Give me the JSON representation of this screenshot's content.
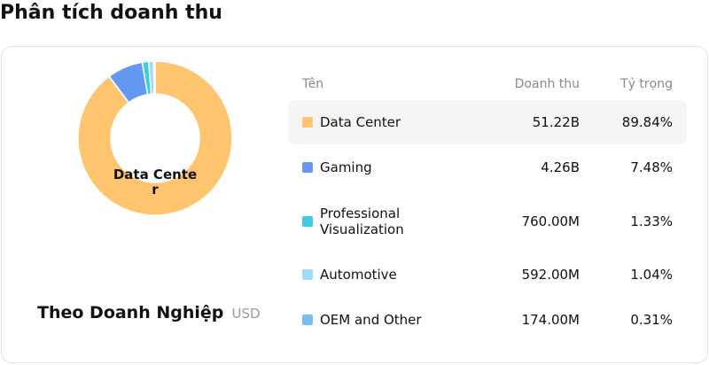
{
  "page_title": "Phân tích doanh thu",
  "summary": {
    "center_label": "Data Center",
    "caption": "Theo Doanh Nghiệp",
    "unit": "USD"
  },
  "table": {
    "headers": {
      "name": "Tên",
      "revenue": "Doanh thu",
      "share": "Tỷ trọng"
    },
    "rows": [
      {
        "name": "Data Center",
        "revenue": "51.22B",
        "share": "89.84%",
        "color": "#ffc46e",
        "selected": true
      },
      {
        "name": "Gaming",
        "revenue": "4.26B",
        "share": "7.48%",
        "color": "#6499f2",
        "selected": false
      },
      {
        "name": "Professional Visualization",
        "revenue": "760.00M",
        "share": "1.33%",
        "color": "#3ccbe0",
        "selected": false
      },
      {
        "name": "Automotive",
        "revenue": "592.00M",
        "share": "1.04%",
        "color": "#9ddcf5",
        "selected": false
      },
      {
        "name": "OEM and Other",
        "revenue": "174.00M",
        "share": "0.31%",
        "color": "#74c0f3",
        "selected": false
      }
    ]
  },
  "chart_data": {
    "type": "pie",
    "categories": [
      "Data Center",
      "Gaming",
      "Professional Visualization",
      "Automotive",
      "OEM and Other"
    ],
    "values": [
      89.84,
      7.48,
      1.33,
      1.04,
      0.31
    ],
    "colors": [
      "#ffc46e",
      "#6499f2",
      "#3ccbe0",
      "#9ddcf5",
      "#74c0f3"
    ],
    "title": "",
    "legend": "right-table"
  }
}
